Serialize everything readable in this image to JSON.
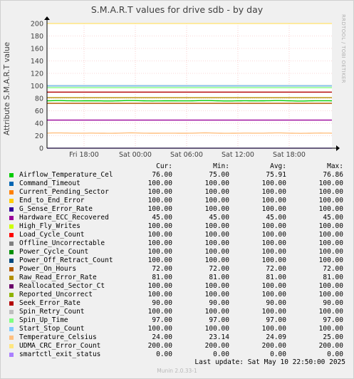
{
  "chart_data": {
    "type": "line",
    "title": "S.M.A.R.T values for drive sdb - by day",
    "ylabel": "Attribute S.M.A.R.T value",
    "xlabel": "",
    "ylim": [
      0,
      200
    ],
    "yticks": [
      0,
      20,
      40,
      60,
      80,
      100,
      120,
      140,
      160,
      180,
      200
    ],
    "xticks": [
      "Fri 18:00",
      "Sat 00:00",
      "Sat 06:00",
      "Sat 12:00",
      "Sat 18:00"
    ],
    "grid": true,
    "columns": [
      "Cur:",
      "Min:",
      "Avg:",
      "Max:"
    ],
    "series": [
      {
        "name": "Airflow_Temperature_Cel",
        "color": "#00cc00",
        "cur": "76.00",
        "min": "75.00",
        "avg": "75.91",
        "max": "76.86"
      },
      {
        "name": "Command_Timeout",
        "color": "#0066b3",
        "cur": "100.00",
        "min": "100.00",
        "avg": "100.00",
        "max": "100.00"
      },
      {
        "name": "Current_Pending_Sector",
        "color": "#ff8000",
        "cur": "100.00",
        "min": "100.00",
        "avg": "100.00",
        "max": "100.00"
      },
      {
        "name": "End_to_End_Error",
        "color": "#ffcc00",
        "cur": "100.00",
        "min": "100.00",
        "avg": "100.00",
        "max": "100.00"
      },
      {
        "name": "G_Sense_Error_Rate",
        "color": "#330099",
        "cur": "100.00",
        "min": "100.00",
        "avg": "100.00",
        "max": "100.00"
      },
      {
        "name": "Hardware_ECC_Recovered",
        "color": "#990099",
        "cur": "45.00",
        "min": "45.00",
        "avg": "45.00",
        "max": "45.00"
      },
      {
        "name": "High_Fly_Writes",
        "color": "#ccff00",
        "cur": "100.00",
        "min": "100.00",
        "avg": "100.00",
        "max": "100.00"
      },
      {
        "name": "Load_Cycle_Count",
        "color": "#ff0000",
        "cur": "100.00",
        "min": "100.00",
        "avg": "100.00",
        "max": "100.00"
      },
      {
        "name": "Offline_Uncorrectable",
        "color": "#808080",
        "cur": "100.00",
        "min": "100.00",
        "avg": "100.00",
        "max": "100.00"
      },
      {
        "name": "Power_Cycle_Count",
        "color": "#008f00",
        "cur": "100.00",
        "min": "100.00",
        "avg": "100.00",
        "max": "100.00"
      },
      {
        "name": "Power_Off_Retract_Count",
        "color": "#00487d",
        "cur": "100.00",
        "min": "100.00",
        "avg": "100.00",
        "max": "100.00"
      },
      {
        "name": "Power_On_Hours",
        "color": "#b35a00",
        "cur": "72.00",
        "min": "72.00",
        "avg": "72.00",
        "max": "72.00"
      },
      {
        "name": "Raw_Read_Error_Rate",
        "color": "#b38f00",
        "cur": "81.00",
        "min": "81.00",
        "avg": "81.00",
        "max": "81.00"
      },
      {
        "name": "Reallocated_Sector_Ct",
        "color": "#6b006b",
        "cur": "100.00",
        "min": "100.00",
        "avg": "100.00",
        "max": "100.00"
      },
      {
        "name": "Reported_Uncorrect",
        "color": "#8fb300",
        "cur": "100.00",
        "min": "100.00",
        "avg": "100.00",
        "max": "100.00"
      },
      {
        "name": "Seek_Error_Rate",
        "color": "#b30000",
        "cur": "90.00",
        "min": "90.00",
        "avg": "90.00",
        "max": "90.00"
      },
      {
        "name": "Spin_Retry_Count",
        "color": "#bebebe",
        "cur": "100.00",
        "min": "100.00",
        "avg": "100.00",
        "max": "100.00"
      },
      {
        "name": "Spin_Up_Time",
        "color": "#80ff80",
        "cur": "97.00",
        "min": "97.00",
        "avg": "97.00",
        "max": "97.00"
      },
      {
        "name": "Start_Stop_Count",
        "color": "#80c9ff",
        "cur": "100.00",
        "min": "100.00",
        "avg": "100.00",
        "max": "100.00"
      },
      {
        "name": "Temperature_Celsius",
        "color": "#ffc080",
        "cur": "24.00",
        "min": "23.14",
        "avg": "24.09",
        "max": "25.00"
      },
      {
        "name": "UDMA_CRC_Error_Count",
        "color": "#ffe680",
        "cur": "200.00",
        "min": "200.00",
        "avg": "200.00",
        "max": "200.00"
      },
      {
        "name": "smartctl_exit_status",
        "color": "#aa80ff",
        "cur": "0.00",
        "min": "0.00",
        "avg": "0.00",
        "max": "0.00"
      }
    ]
  },
  "side_text": "RRDTOOL / TOBI OETIKER",
  "last_update": "Last update:  Sat May 10 22:50:00 2025",
  "footer": "Munin 2.0.33-1"
}
